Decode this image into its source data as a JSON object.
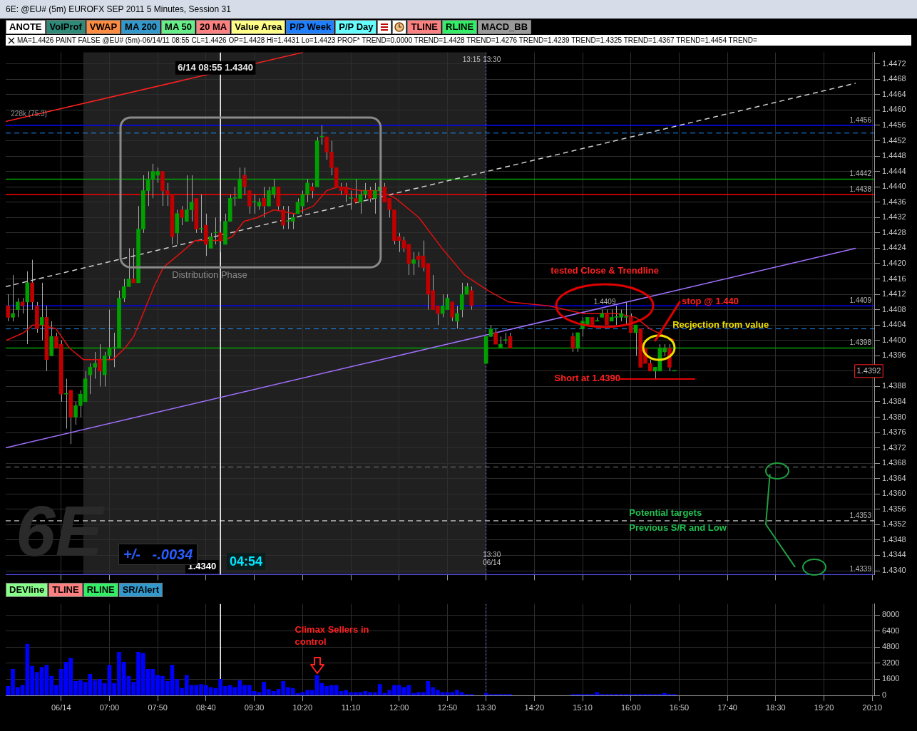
{
  "chart_data": [
    {
      "type": "candlestick",
      "title": "6E: @EU# (5m) EUROFX SEP 2011 5 Minutes, Session 31",
      "x": [
        5.25,
        5.3333,
        5.4167,
        5.5,
        5.5833,
        5.6667,
        5.75,
        5.8333,
        5.9167,
        6,
        6.0833,
        6.1667,
        6.25,
        6.3333,
        6.4167,
        6.5,
        6.5833,
        6.6667,
        6.75,
        6.8333,
        6.9167,
        7,
        7.0833,
        7.1667,
        7.25,
        7.3333,
        7.4167,
        7.5,
        7.5833,
        7.6667,
        7.75,
        7.8333,
        7.9167,
        8,
        8.0833,
        8.1667,
        8.25,
        8.3333,
        8.4167,
        8.5,
        8.5833,
        8.6667,
        8.75,
        8.8333,
        8.9167,
        9,
        9.0833,
        9.1667,
        9.25,
        9.3333,
        9.4167,
        9.5,
        9.5833,
        9.6667,
        9.75,
        9.8333,
        9.9167,
        10,
        10.0833,
        10.1667,
        10.25,
        10.3333,
        10.4167,
        10.5,
        10.5833,
        10.6667,
        10.75,
        10.8333,
        10.9167,
        11,
        11.0833,
        11.1667,
        11.25,
        11.3333,
        11.4167,
        11.5,
        11.5833,
        11.6667,
        11.75,
        11.8333,
        11.9167,
        12,
        12.0833,
        12.1667,
        12.25,
        12.3333,
        12.4167,
        12.5,
        12.5833,
        12.6667,
        12.75,
        12.8333,
        12.9167,
        13,
        13.0833,
        13.1667,
        13.25,
        13.5,
        13.5833,
        13.6667,
        13.75,
        13.8333,
        13.9167,
        15,
        15.0833,
        15.1667,
        15.25,
        15.3333,
        15.4167,
        15.5,
        15.5833,
        15.6667,
        15.75,
        15.8333,
        15.9167,
        16,
        16.0833,
        16.1667,
        16.25,
        16.3333,
        16.4167,
        16.5,
        16.5833,
        16.6667,
        16.75
      ],
      "ohlc": [
        [
          1.4409,
          1.4412,
          1.4405,
          1.4406
        ],
        [
          1.4406,
          1.4417,
          1.4405,
          1.4407
        ],
        [
          1.4408,
          1.4411,
          1.4406,
          1.441
        ],
        [
          1.441,
          1.4411,
          1.4407,
          1.4409
        ],
        [
          1.441,
          1.4418,
          1.4399,
          1.4415
        ],
        [
          1.4415,
          1.4421,
          1.4408,
          1.441
        ],
        [
          1.4409,
          1.441,
          1.4402,
          1.4403
        ],
        [
          1.4404,
          1.4415,
          1.44,
          1.4406
        ],
        [
          1.4406,
          1.4409,
          1.4392,
          1.4395
        ],
        [
          1.4396,
          1.4405,
          1.4396,
          1.4401
        ],
        [
          1.4401,
          1.4402,
          1.4398,
          1.4398
        ],
        [
          1.4399,
          1.44,
          1.4384,
          1.4386
        ],
        [
          1.4386,
          1.439,
          1.4377,
          1.4386
        ],
        [
          1.4387,
          1.4387,
          1.4373,
          1.438
        ],
        [
          1.438,
          1.4384,
          1.4378,
          1.4383
        ],
        [
          1.4383,
          1.4387,
          1.438,
          1.4386
        ],
        [
          1.4384,
          1.4392,
          1.4384,
          1.439
        ],
        [
          1.4391,
          1.4394,
          1.4386,
          1.4393
        ],
        [
          1.4393,
          1.4397,
          1.439,
          1.4394
        ],
        [
          1.4395,
          1.4399,
          1.4388,
          1.4392
        ],
        [
          1.4391,
          1.4397,
          1.4388,
          1.4396
        ],
        [
          1.4396,
          1.4408,
          1.4395,
          1.4398
        ],
        [
          1.4398,
          1.4402,
          1.4393,
          1.4398
        ],
        [
          1.4398,
          1.4413,
          1.4398,
          1.4411
        ],
        [
          1.4411,
          1.4416,
          1.441,
          1.4414
        ],
        [
          1.4414,
          1.4424,
          1.4414,
          1.4416
        ],
        [
          1.4416,
          1.4424,
          1.4415,
          1.4415
        ],
        [
          1.4415,
          1.4435,
          1.4415,
          1.4429
        ],
        [
          1.4429,
          1.4443,
          1.4428,
          1.4439
        ],
        [
          1.4439,
          1.4444,
          1.4435,
          1.4442
        ],
        [
          1.4442,
          1.4446,
          1.4437,
          1.4444
        ],
        [
          1.4443,
          1.4445,
          1.4441,
          1.4444
        ],
        [
          1.4444,
          1.4444,
          1.4435,
          1.4439
        ],
        [
          1.4439,
          1.4441,
          1.4435,
          1.4438
        ],
        [
          1.4438,
          1.4438,
          1.4425,
          1.4427
        ],
        [
          1.4428,
          1.4434,
          1.4425,
          1.4433
        ],
        [
          1.4434,
          1.4435,
          1.443,
          1.4432
        ],
        [
          1.4431,
          1.4443,
          1.4431,
          1.4434
        ],
        [
          1.4434,
          1.4443,
          1.4431,
          1.4436
        ],
        [
          1.4437,
          1.4437,
          1.4428,
          1.4429
        ],
        [
          1.4429,
          1.4438,
          1.4428,
          1.4429
        ],
        [
          1.443,
          1.4433,
          1.4422,
          1.4425
        ],
        [
          1.4424,
          1.4428,
          1.4424,
          1.4427
        ],
        [
          1.4428,
          1.4432,
          1.4425,
          1.4428
        ],
        [
          1.4428,
          1.4431,
          1.4423,
          1.4426
        ],
        [
          1.4425,
          1.4433,
          1.4425,
          1.4431
        ],
        [
          1.4431,
          1.4438,
          1.4431,
          1.4437
        ],
        [
          1.4437,
          1.444,
          1.4435,
          1.4437
        ],
        [
          1.4437,
          1.4445,
          1.4437,
          1.4442
        ],
        [
          1.4443,
          1.4445,
          1.4438,
          1.444
        ],
        [
          1.4439,
          1.4439,
          1.4433,
          1.4435
        ],
        [
          1.4436,
          1.4438,
          1.4433,
          1.4436
        ],
        [
          1.4435,
          1.4437,
          1.4434,
          1.4436
        ],
        [
          1.4437,
          1.444,
          1.4432,
          1.4435
        ],
        [
          1.4435,
          1.444,
          1.4435,
          1.4439
        ],
        [
          1.4438,
          1.4442,
          1.4437,
          1.444
        ],
        [
          1.444,
          1.444,
          1.4434,
          1.4435
        ],
        [
          1.4434,
          1.4435,
          1.4429,
          1.443
        ],
        [
          1.4431,
          1.4435,
          1.4429,
          1.4431
        ],
        [
          1.4431,
          1.4433,
          1.4429,
          1.4432
        ],
        [
          1.4433,
          1.4437,
          1.4433,
          1.4436
        ],
        [
          1.4435,
          1.4439,
          1.4433,
          1.4438
        ],
        [
          1.4438,
          1.4442,
          1.4436,
          1.4441
        ],
        [
          1.444,
          1.4441,
          1.4437,
          1.4439
        ],
        [
          1.444,
          1.4453,
          1.444,
          1.4452
        ],
        [
          1.4453,
          1.4456,
          1.4451,
          1.4453
        ],
        [
          1.4453,
          1.4453,
          1.4447,
          1.4449
        ],
        [
          1.4449,
          1.4452,
          1.4443,
          1.4445
        ],
        [
          1.4445,
          1.4445,
          1.444,
          1.444
        ],
        [
          1.444,
          1.4441,
          1.4438,
          1.4439
        ],
        [
          1.444,
          1.4441,
          1.4436,
          1.4438
        ],
        [
          1.4437,
          1.4439,
          1.4434,
          1.4437
        ],
        [
          1.4437,
          1.4442,
          1.4436,
          1.4436
        ],
        [
          1.4436,
          1.4439,
          1.4433,
          1.4438
        ],
        [
          1.4438,
          1.4441,
          1.4437,
          1.4439
        ],
        [
          1.4439,
          1.444,
          1.4436,
          1.4437
        ],
        [
          1.4437,
          1.4441,
          1.4433,
          1.4439
        ],
        [
          1.4439,
          1.4444,
          1.4438,
          1.444
        ],
        [
          1.444,
          1.4441,
          1.4436,
          1.4436
        ],
        [
          1.4437,
          1.4437,
          1.4432,
          1.4434
        ],
        [
          1.4434,
          1.4434,
          1.4425,
          1.4426
        ],
        [
          1.4427,
          1.4428,
          1.4423,
          1.4426
        ],
        [
          1.4426,
          1.4427,
          1.4423,
          1.4424
        ],
        [
          1.4425,
          1.4425,
          1.4417,
          1.442
        ],
        [
          1.442,
          1.4423,
          1.4417,
          1.4421
        ],
        [
          1.4422,
          1.4423,
          1.4419,
          1.4421
        ],
        [
          1.4422,
          1.4426,
          1.4418,
          1.4419
        ],
        [
          1.442,
          1.442,
          1.4408,
          1.4412
        ],
        [
          1.4413,
          1.4417,
          1.4408,
          1.4408
        ],
        [
          1.4409,
          1.4409,
          1.4404,
          1.4407
        ],
        [
          1.4407,
          1.4412,
          1.4406,
          1.4409
        ],
        [
          1.4408,
          1.4412,
          1.4408,
          1.4411
        ],
        [
          1.441,
          1.441,
          1.4405,
          1.4406
        ],
        [
          1.4405,
          1.4409,
          1.4403,
          1.4407
        ],
        [
          1.4408,
          1.4415,
          1.4406,
          1.4412
        ],
        [
          1.4412,
          1.4415,
          1.4412,
          1.4414
        ],
        [
          1.4413,
          1.4414,
          1.4408,
          1.4409
        ],
        [
          1.4394,
          1.4401,
          1.4394,
          1.4401
        ],
        [
          1.4401,
          1.4404,
          1.4401,
          1.4403
        ],
        [
          1.4402,
          1.4403,
          1.4399,
          1.4399
        ],
        [
          1.4398,
          1.4401,
          1.4398,
          1.4399
        ],
        [
          1.44,
          1.4402,
          1.4399,
          1.44
        ],
        [
          1.4401,
          1.4402,
          1.4398,
          1.4398
        ],
        [
          1.4401,
          1.4402,
          1.4397,
          1.4398
        ],
        [
          1.4398,
          1.4402,
          1.4397,
          1.4402
        ],
        [
          1.4403,
          1.4406,
          1.4401,
          1.4405
        ],
        [
          1.4404,
          1.4406,
          1.4404,
          1.4406
        ],
        [
          1.4406,
          1.4406,
          1.4404,
          1.4404
        ],
        [
          1.4405,
          1.4406,
          1.4405,
          1.4405
        ],
        [
          1.4406,
          1.4408,
          1.4406,
          1.4407
        ],
        [
          1.4407,
          1.4408,
          1.4404,
          1.4404
        ],
        [
          1.4405,
          1.4408,
          1.4405,
          1.4406
        ],
        [
          1.4406,
          1.4409,
          1.4404,
          1.4406
        ],
        [
          1.4406,
          1.4408,
          1.4405,
          1.4407
        ],
        [
          1.4406,
          1.441,
          1.4404,
          1.4406
        ],
        [
          1.4406,
          1.4407,
          1.4402,
          1.4402
        ],
        [
          1.4402,
          1.4404,
          1.4396,
          1.4404
        ],
        [
          1.4403,
          1.4403,
          1.4393,
          1.4393
        ],
        [
          1.4398,
          1.4398,
          1.4394,
          1.4394
        ],
        [
          1.4394,
          1.4395,
          1.4392,
          1.4392
        ],
        [
          1.4392,
          1.4393,
          1.439,
          1.4393
        ],
        [
          1.4392,
          1.4399,
          1.4392,
          1.4398
        ],
        [
          1.4397,
          1.4399,
          1.4396,
          1.4398
        ],
        [
          1.4398,
          1.4399,
          1.4392,
          1.4393
        ],
        [
          1.4392,
          1.4392,
          1.4392,
          1.4392
        ]
      ],
      "series": [
        {
          "type": "line",
          "color": "#e01010",
          "x": [
            5.22,
            5.52,
            5.68,
            5.84,
            6.08,
            6.31,
            6.55,
            6.78,
            7.06,
            7.27,
            7.42,
            7.61,
            7.77,
            7.93,
            8.17,
            8.48,
            8.72,
            8.96,
            9.12,
            9.32,
            9.56,
            9.84,
            10.2,
            10.52,
            10.75,
            10.95,
            11.34,
            11.67,
            11.94,
            12.34,
            12.74,
            13.13,
            13.53,
            13.89,
            14.58,
            15.17,
            15.75,
            16.08,
            16.33,
            16.75
          ],
          "values": [
            1.44,
            1.4402,
            1.4404,
            1.4404,
            1.4403,
            1.4398,
            1.4395,
            1.4395,
            1.4395,
            1.4398,
            1.4401,
            1.4408,
            1.4414,
            1.4419,
            1.4422,
            1.4426,
            1.4426,
            1.4426,
            1.4427,
            1.4431,
            1.4432,
            1.4434,
            1.4433,
            1.4435,
            1.4439,
            1.444,
            1.4439,
            1.4439,
            1.4437,
            1.4432,
            1.4424,
            1.4417,
            1.4413,
            1.441,
            1.4409,
            1.4407,
            1.4407,
            1.4406,
            1.4403,
            1.44
          ]
        },
        {
          "type": "line",
          "color": "#ff2020",
          "x": [
            5.21,
            10.34
          ],
          "values": [
            1.4457,
            1.4475
          ]
        },
        {
          "type": "line",
          "color": "#d0d0d0",
          "line_style": "dashed",
          "x": [
            5.21,
            19.88
          ],
          "values": [
            1.4414,
            1.4467
          ]
        },
        {
          "type": "line",
          "color": "#a070ff",
          "x": [
            5.21,
            19.88
          ],
          "values": [
            1.4372,
            1.4424
          ]
        }
      ],
      "xlim": [
        5.21,
        20.2
      ],
      "xticks": [
        {
          "value": 6.1667,
          "label": null
        },
        {
          "value": 7,
          "label": null
        },
        {
          "value": 7.8333,
          "label": null
        },
        {
          "value": 8.6667,
          "label": null
        },
        {
          "value": 9.5,
          "label": null
        },
        {
          "value": 10.3333,
          "label": null
        },
        {
          "value": 11.1667,
          "label": null
        },
        {
          "value": 12,
          "label": null
        },
        {
          "value": 12.8333,
          "label": null
        },
        {
          "value": 13.5,
          "label": null
        },
        {
          "value": 14.3333,
          "label": null
        },
        {
          "value": 15.1667,
          "label": null
        },
        {
          "value": 16,
          "label": null
        },
        {
          "value": 16.8333,
          "label": null
        },
        {
          "value": 17.6667,
          "label": null
        },
        {
          "value": 18.5,
          "label": null
        },
        {
          "value": 19.3333,
          "label": null
        },
        {
          "value": 20.1667,
          "label": null
        }
      ],
      "ylim": [
        1.4339,
        1.4475
      ],
      "yticks": [
        {
          "value": 1.434,
          "label": "1.4340"
        },
        1.4344,
        1.4348,
        1.4352,
        1.4356,
        {
          "value": 1.436,
          "label": "1.4360"
        },
        1.4364,
        1.4368,
        1.4372,
        1.4376,
        {
          "value": 1.438,
          "label": "1.4380"
        },
        1.4384,
        1.4388,
        {
          "value": 1.4392,
          "label": null
        },
        1.4396,
        {
          "value": 1.44,
          "label": "1.4400"
        },
        1.4404,
        1.4408,
        1.4412,
        1.4416,
        {
          "value": 1.442,
          "label": "1.4420"
        },
        1.4424,
        1.4428,
        1.4432,
        1.4436,
        {
          "value": 1.444,
          "label": "1.4440"
        },
        1.4444,
        1.4448,
        1.4452,
        1.4456,
        {
          "value": 1.446,
          "label": "1.4460"
        },
        1.4464,
        1.4468,
        1.4472
      ],
      "tick_labels": "y",
      "grid": true,
      "bands": [
        {
          "axis": "x",
          "from": 6.55,
          "to": 13.5,
          "color": "#202020"
        }
      ],
      "ref_lines": [
        {
          "axis": "y",
          "value": 1.4456,
          "label": "1.4456",
          "color": "#0000ff"
        },
        {
          "axis": "y",
          "value": 1.4454,
          "color": "#1e90ff",
          "line_style": "dashed"
        },
        {
          "axis": "y",
          "value": 1.4442,
          "label": "1.4442",
          "color": "#00a000"
        },
        {
          "axis": "y",
          "value": 1.4438,
          "label": "1.4438",
          "color": "#ff0000"
        },
        {
          "axis": "y",
          "value": 1.4409,
          "label": "1.4409",
          "color": "#0000ff"
        },
        {
          "axis": "y",
          "value": 1.4403,
          "color": "#1e90ff",
          "line_style": "dashed"
        },
        {
          "axis": "y",
          "value": 1.4398,
          "label": "1.4398",
          "color": "#00a000"
        },
        {
          "axis": "y",
          "value": 1.4367,
          "color": "#808080",
          "line_style": "dashed"
        },
        {
          "axis": "y",
          "value": 1.4353,
          "label": "1.4353",
          "color": "#ffffff",
          "line_style": "dashed"
        },
        {
          "axis": "y",
          "value": 1.4339,
          "label": "1.4339",
          "color": "#0000ff"
        },
        {
          "axis": "x",
          "value": 8.9167,
          "color": "#ffffff"
        },
        {
          "axis": "x",
          "value": 13.5,
          "color": "#8080ff",
          "line_style": "dotted"
        }
      ],
      "annotations": [
        "ANOTE",
        "VolProf",
        "VWAP",
        "MA 200",
        "MA 50",
        "20 MA",
        "Value Area",
        "P/P Week",
        "P/P Day",
        "TLINE",
        "RLINE",
        "MACD_BB",
        "MA=1.4426 PAINT FALSE @EU# (5m)-06/14/11 08:55 CL=1.4426 OP=1.4428 Hi=1.4431 Lo=1.4423 PROF* TREND=0.0000 TREND=1.4428 TREND=1.4276 TREND=1.4239 TREND=1.4325 TREND=1.4367 TREND=1.4454 TREND=",
        "DEVline",
        "TLINE",
        "RLINE",
        "SR/Alert",
        "6E",
        "+/-   -.0034",
        "04:54",
        "6/14 08:55 1.4340",
        "228k (75.3)",
        "Distribution Phase",
        "tested Close & Trendline",
        "1.4409",
        "stop @ 1.440",
        "Recjection from value",
        "Short at 1.4390",
        "Potential targets",
        "Previous S/R and Low",
        "1.4392",
        "13:15",
        "13:30",
        "13:30",
        "06/14",
        "1.4340"
      ]
    },
    {
      "type": "bar",
      "color": "#0000ff",
      "x": [
        5.25,
        5.3333,
        5.4167,
        5.5,
        5.5833,
        5.6667,
        5.75,
        5.8333,
        5.9167,
        6,
        6.0833,
        6.1667,
        6.25,
        6.3333,
        6.4167,
        6.5,
        6.5833,
        6.6667,
        6.75,
        6.8333,
        6.9167,
        7,
        7.0833,
        7.1667,
        7.25,
        7.3333,
        7.4167,
        7.5,
        7.5833,
        7.6667,
        7.75,
        7.8333,
        7.9167,
        8,
        8.0833,
        8.1667,
        8.25,
        8.3333,
        8.4167,
        8.5,
        8.5833,
        8.6667,
        8.75,
        8.8333,
        8.9167,
        9,
        9.0833,
        9.1667,
        9.25,
        9.3333,
        9.4167,
        9.5,
        9.5833,
        9.6667,
        9.75,
        9.8333,
        9.9167,
        10,
        10.0833,
        10.1667,
        10.25,
        10.3333,
        10.4167,
        10.5,
        10.5833,
        10.6667,
        10.75,
        10.8333,
        10.9167,
        11,
        11.0833,
        11.1667,
        11.25,
        11.3333,
        11.4167,
        11.5,
        11.5833,
        11.6667,
        11.75,
        11.8333,
        11.9167,
        12,
        12.0833,
        12.1667,
        12.25,
        12.3333,
        12.4167,
        12.5,
        12.5833,
        12.6667,
        12.75,
        12.8333,
        12.9167,
        13,
        13.0833,
        13.1667,
        13.25,
        13.5,
        13.5833,
        13.6667,
        13.75,
        13.8333,
        13.9167,
        15,
        15.0833,
        15.1667,
        15.25,
        15.3333,
        15.4167,
        15.5,
        15.5833,
        15.6667,
        15.75,
        15.8333,
        15.9167,
        16,
        16.0833,
        16.1667,
        16.25,
        16.3333,
        16.4167,
        16.5,
        16.5833,
        16.6667,
        16.75
      ],
      "values": [
        900,
        2600,
        800,
        1000,
        5100,
        2900,
        2300,
        2800,
        3000,
        1900,
        1000,
        2600,
        3300,
        3700,
        1400,
        1500,
        1300,
        2100,
        1500,
        1600,
        1200,
        3000,
        1200,
        4300,
        3300,
        1900,
        1300,
        4300,
        4200,
        2600,
        2600,
        2000,
        1900,
        1400,
        3000,
        1600,
        700,
        2000,
        1000,
        1000,
        1100,
        1000,
        800,
        700,
        1600,
        900,
        1000,
        800,
        1500,
        1000,
        1000,
        400,
        300,
        1300,
        600,
        400,
        600,
        1400,
        800,
        700,
        200,
        300,
        500,
        500,
        2000,
        1200,
        900,
        1000,
        1000,
        400,
        500,
        300,
        300,
        300,
        400,
        300,
        300,
        1100,
        200,
        500,
        1000,
        1000,
        800,
        1000,
        200,
        300,
        300,
        1400,
        800,
        500,
        300,
        300,
        300,
        500,
        300,
        100,
        100,
        200,
        100,
        100,
        100,
        100,
        100,
        100,
        100,
        100,
        100,
        100,
        300,
        100,
        100,
        100,
        100,
        100,
        100,
        100,
        100,
        100,
        100,
        100,
        100,
        100,
        200,
        100,
        100
      ],
      "xlim": [
        5.21,
        20.2
      ],
      "xticks": [
        {
          "value": 6.1667,
          "label": "06/14"
        },
        {
          "value": 7,
          "label": "07:00"
        },
        {
          "value": 7.8333,
          "label": "07:50"
        },
        {
          "value": 8.6667,
          "label": "08:40"
        },
        {
          "value": 9.5,
          "label": "09:30"
        },
        {
          "value": 10.3333,
          "label": "10:20"
        },
        {
          "value": 11.1667,
          "label": "11:10"
        },
        {
          "value": 12,
          "label": "12:00"
        },
        {
          "value": 12.8333,
          "label": "12:50"
        },
        {
          "value": 13.5,
          "label": "13:30"
        },
        {
          "value": 14.3333,
          "label": "14:20"
        },
        {
          "value": 15.1667,
          "label": "15:10"
        },
        {
          "value": 16,
          "label": "16:00"
        },
        {
          "value": 16.8333,
          "label": "16:50"
        },
        {
          "value": 17.6667,
          "label": "17:40"
        },
        {
          "value": 18.5,
          "label": "18:30"
        },
        {
          "value": 19.3333,
          "label": "19:20"
        },
        {
          "value": 20.1667,
          "label": "20:10"
        }
      ],
      "ylim": [
        0,
        9100
      ],
      "yticks": [
        0,
        1600,
        3200,
        4800,
        6400,
        8000
      ],
      "grid": true,
      "ref_lines": [
        {
          "axis": "x",
          "value": 8.9167,
          "color": "#ffffff"
        },
        {
          "axis": "x",
          "value": 13.5,
          "color": "#8080ff",
          "line_style": "dotted"
        }
      ],
      "annotations": [
        "Climax Sellers in",
        "control"
      ]
    }
  ]
}
